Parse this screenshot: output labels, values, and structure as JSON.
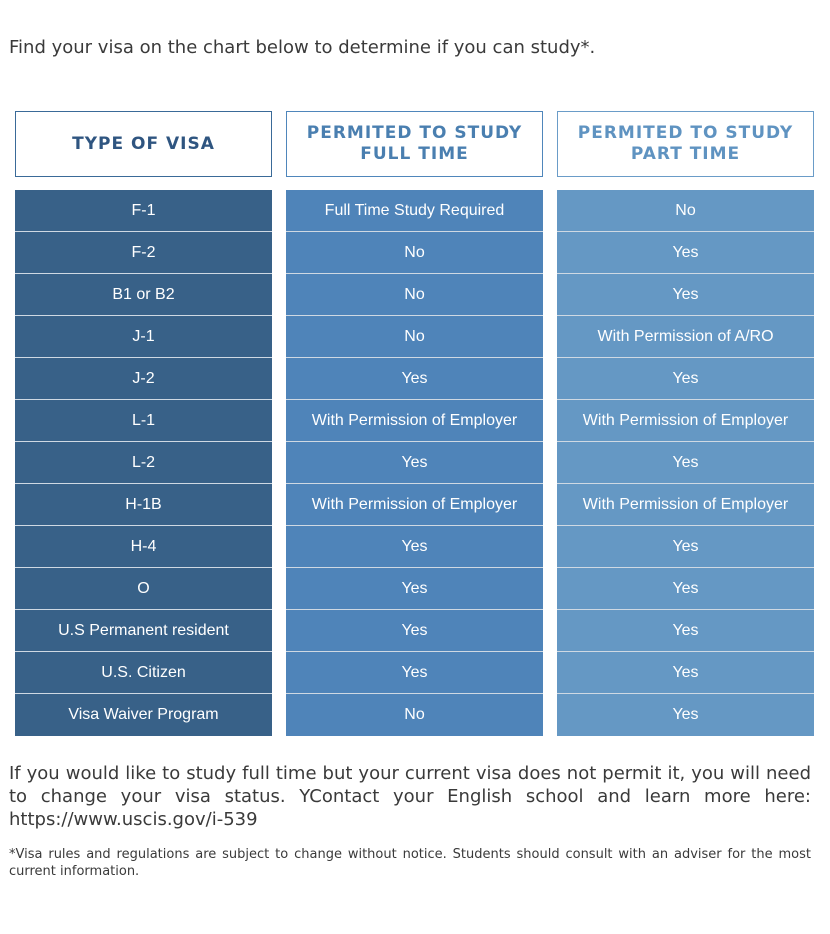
{
  "intro_text": "Find your visa on the chart below to determine if you can study*.",
  "table": {
    "headers": {
      "type": "TYPE OF VISA",
      "full_time_line1": "PERMITED TO STUDY",
      "full_time_line2": "FULL TIME",
      "part_time_line1": "PERMITED TO STUDY",
      "part_time_line2": "PART TIME"
    },
    "rows": [
      {
        "visa": "F-1",
        "full_time": "Full Time Study Required",
        "part_time": "No"
      },
      {
        "visa": "F-2",
        "full_time": "No",
        "part_time": "Yes"
      },
      {
        "visa": "B1 or B2",
        "full_time": "No",
        "part_time": "Yes"
      },
      {
        "visa": "J-1",
        "full_time": "No",
        "part_time": "With Permission of A/RO"
      },
      {
        "visa": "J-2",
        "full_time": "Yes",
        "part_time": "Yes"
      },
      {
        "visa": "L-1",
        "full_time": "With Permission of Employer",
        "part_time": "With Permission of Employer"
      },
      {
        "visa": "L-2",
        "full_time": "Yes",
        "part_time": "Yes"
      },
      {
        "visa": "H-1B",
        "full_time": "With Permission of Employer",
        "part_time": "With Permission of Employer"
      },
      {
        "visa": "H-4",
        "full_time": "Yes",
        "part_time": "Yes"
      },
      {
        "visa": "O",
        "full_time": "Yes",
        "part_time": "Yes"
      },
      {
        "visa": "U.S Permanent resident",
        "full_time": "Yes",
        "part_time": "Yes"
      },
      {
        "visa": "U.S. Citizen",
        "full_time": "Yes",
        "part_time": "Yes"
      },
      {
        "visa": "Visa Waiver Program",
        "full_time": "No",
        "part_time": "Yes"
      }
    ]
  },
  "status_paragraph": "If you would like to study full time but your current visa does not permit it, you will need to change your visa status. YContact your English school and learn more here: https://www.uscis.gov/i-539",
  "footnote": "*Visa rules and regulations are subject to change without notice. Students should consult with an adviser for the most current information.",
  "colors": {
    "col1": "#386188",
    "col2": "#4f84b9",
    "col3": "#6598c4"
  }
}
